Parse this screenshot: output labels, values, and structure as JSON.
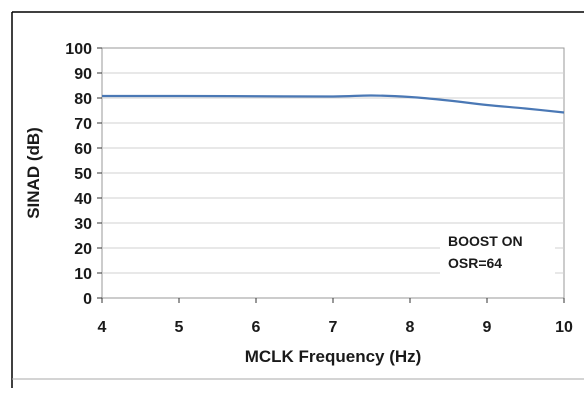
{
  "chart_data": {
    "type": "line",
    "xlabel": "MCLK Frequency (Hz)",
    "ylabel": "SINAD (dB)",
    "xlim": [
      4,
      10
    ],
    "ylim": [
      0,
      100
    ],
    "x_ticks": [
      "4",
      "5",
      "6",
      "7",
      "8",
      "9",
      "10"
    ],
    "y_ticks": [
      "0",
      "10",
      "20",
      "30",
      "40",
      "50",
      "60",
      "70",
      "80",
      "90",
      "100"
    ],
    "grid": "horizontal",
    "series": [
      {
        "color": "#4a78b5",
        "points": [
          {
            "x": 4,
            "y": 80.8
          },
          {
            "x": 5,
            "y": 80.8
          },
          {
            "x": 6,
            "y": 80.7
          },
          {
            "x": 7,
            "y": 80.6
          },
          {
            "x": 7.5,
            "y": 81.0
          },
          {
            "x": 8,
            "y": 80.4
          },
          {
            "x": 8.5,
            "y": 79.0
          },
          {
            "x": 9,
            "y": 77.2
          },
          {
            "x": 9.5,
            "y": 75.8
          },
          {
            "x": 10,
            "y": 74.2
          }
        ]
      }
    ],
    "annotation": [
      "BOOST ON",
      "OSR=64"
    ]
  }
}
